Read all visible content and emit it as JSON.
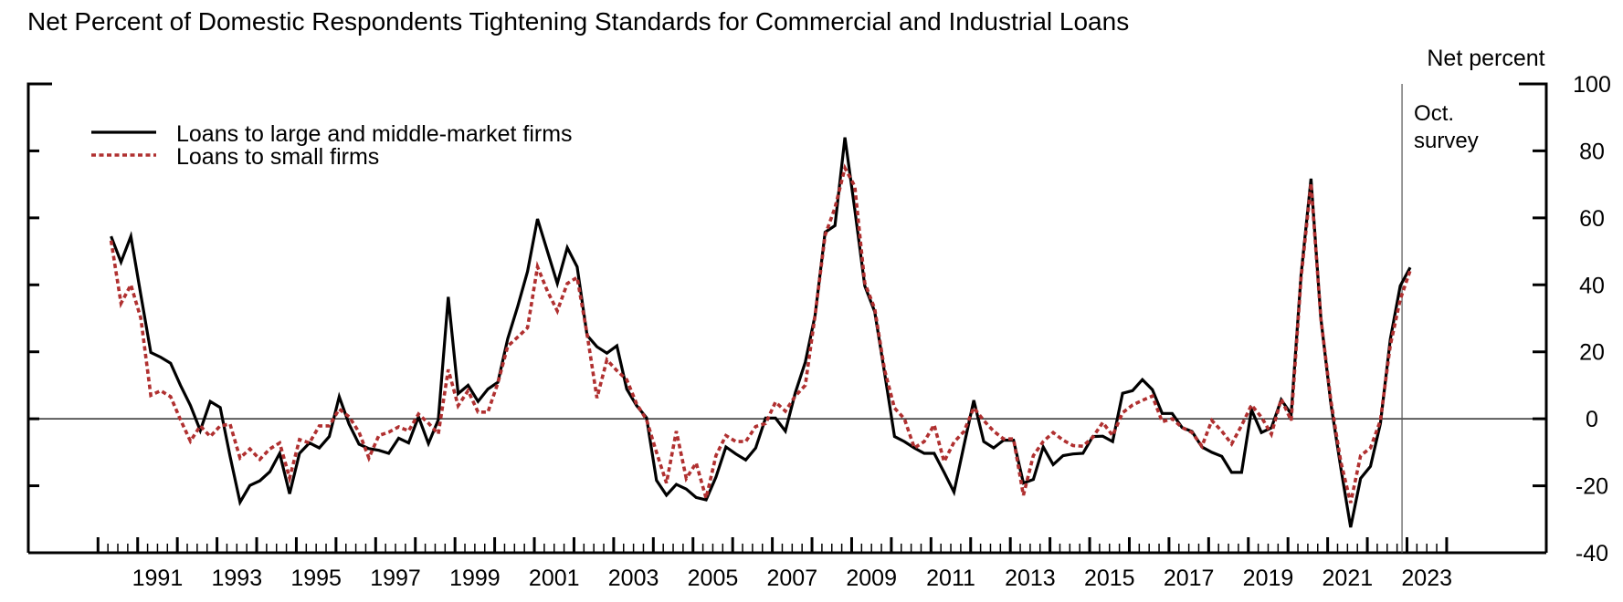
{
  "chart_data": {
    "type": "line",
    "title": "Net Percent of Domestic Respondents Tightening Standards for Commercial and Industrial Loans",
    "ylabel": "Net percent",
    "xlabel": "",
    "ylim": [
      -40,
      100
    ],
    "yticks": [
      100,
      80,
      60,
      40,
      20,
      0,
      -20,
      -40
    ],
    "xlim": [
      1990,
      2024
    ],
    "xtick_labels": [
      "1991",
      "1993",
      "1995",
      "1997",
      "1999",
      "2001",
      "2003",
      "2005",
      "2007",
      "2009",
      "2011",
      "2013",
      "2015",
      "2017",
      "2019",
      "2021",
      "2023"
    ],
    "grid": false,
    "zero_line": true,
    "legend_position": "top-left",
    "annotation": {
      "lines": [
        "Oct.",
        "survey"
      ],
      "x": 2022.875
    },
    "x": [
      "1990Q2",
      "1990Q3",
      "1990Q4",
      "1991Q1",
      "1991Q2",
      "1991Q3",
      "1991Q4",
      "1992Q1",
      "1992Q2",
      "1992Q3",
      "1992Q4",
      "1993Q1",
      "1993Q2",
      "1993Q3",
      "1993Q4",
      "1994Q1",
      "1994Q2",
      "1994Q3",
      "1994Q4",
      "1995Q1",
      "1995Q2",
      "1995Q3",
      "1995Q4",
      "1996Q1",
      "1996Q2",
      "1996Q3",
      "1996Q4",
      "1997Q1",
      "1997Q2",
      "1997Q3",
      "1997Q4",
      "1998Q1",
      "1998Q2",
      "1998Q3",
      "1998Q4",
      "1999Q1",
      "1999Q2",
      "1999Q3",
      "1999Q4",
      "2000Q1",
      "2000Q2",
      "2000Q3",
      "2000Q4",
      "2001Q1",
      "2001Q2",
      "2001Q3",
      "2001Q4",
      "2002Q1",
      "2002Q2",
      "2002Q3",
      "2002Q4",
      "2003Q1",
      "2003Q2",
      "2003Q3",
      "2003Q4",
      "2004Q1",
      "2004Q2",
      "2004Q3",
      "2004Q4",
      "2005Q1",
      "2005Q2",
      "2005Q3",
      "2005Q4",
      "2006Q1",
      "2006Q2",
      "2006Q3",
      "2006Q4",
      "2007Q1",
      "2007Q2",
      "2007Q3",
      "2007Q4",
      "2008Q1",
      "2008Q2",
      "2008Q3",
      "2008Q4",
      "2009Q1",
      "2009Q2",
      "2009Q3",
      "2009Q4",
      "2010Q1",
      "2010Q2",
      "2010Q3",
      "2010Q4",
      "2011Q1",
      "2011Q2",
      "2011Q3",
      "2011Q4",
      "2012Q1",
      "2012Q2",
      "2012Q3",
      "2012Q4",
      "2013Q1",
      "2013Q2",
      "2013Q3",
      "2013Q4",
      "2014Q1",
      "2014Q2",
      "2014Q3",
      "2014Q4",
      "2015Q1",
      "2015Q2",
      "2015Q3",
      "2015Q4",
      "2016Q1",
      "2016Q2",
      "2016Q3",
      "2016Q4",
      "2017Q1",
      "2017Q2",
      "2017Q3",
      "2017Q4",
      "2018Q1",
      "2018Q2",
      "2018Q3",
      "2018Q4",
      "2019Q1",
      "2019Q2",
      "2019Q3",
      "2019Q4",
      "2020Q1",
      "2020Q2",
      "2020Q3",
      "2020Q4",
      "2021Q1",
      "2021Q2",
      "2021Q3",
      "2021Q4",
      "2022Q1",
      "2022Q2",
      "2022Q3",
      "2022Q4",
      "2023Q1"
    ],
    "series": [
      {
        "name": "Loans to large and middle-market firms",
        "color": "#000000",
        "style": "solid",
        "values": [
          54.5,
          46.8,
          54.5,
          37,
          19.8,
          18.4,
          16.6,
          10,
          4,
          -3.5,
          5.2,
          3.4,
          -11.2,
          -24.9,
          -19.9,
          -18.5,
          -15.8,
          -10.3,
          -22.4,
          -10.3,
          -7.2,
          -8.7,
          -5.3,
          6.6,
          -1.6,
          -7.6,
          -8.9,
          -9.4,
          -10.3,
          -5.8,
          -7.2,
          0.6,
          -7.4,
          -0.3,
          36.4,
          7.5,
          10,
          5.2,
          8.9,
          10.9,
          23.9,
          33.5,
          44,
          59.7,
          50,
          40.4,
          51.1,
          45.4,
          24.9,
          21.5,
          19.6,
          21.8,
          8.9,
          3.9,
          0.3,
          -18.4,
          -22.8,
          -19.6,
          -21,
          -23.5,
          -24.2,
          -17.4,
          -8.4,
          -10.5,
          -12.3,
          -8.7,
          0.2,
          0.2,
          -3.7,
          7.8,
          16.9,
          31,
          55.7,
          57.7,
          84,
          62.5,
          39.7,
          32,
          13.7,
          -5.3,
          -6.8,
          -8.7,
          -10.3,
          -10.3,
          -16,
          -21.9,
          -8,
          5.5,
          -6.8,
          -8.7,
          -6.4,
          -6.4,
          -19.2,
          -18.1,
          -8.4,
          -13.7,
          -11,
          -10.5,
          -10.3,
          -5.3,
          -5.2,
          -6.8,
          7.6,
          8.4,
          11.7,
          8.7,
          1.6,
          1.6,
          -2.6,
          -3.8,
          -8.4,
          -10,
          -11.2,
          -16,
          -16,
          2.7,
          -4.1,
          -2.7,
          5.7,
          1.4,
          42.9,
          71.7,
          30,
          4.6,
          -14.6,
          -32.4,
          -17.8,
          -14.2,
          -1.4,
          23.7,
          39.7,
          45.2
        ]
      },
      {
        "name": "Loans to small firms",
        "color": "#b03030",
        "style": "dotted",
        "values": [
          53.2,
          34.5,
          40,
          30,
          7,
          8.4,
          6.6,
          -0.3,
          -6.7,
          -2.1,
          -5.3,
          -2.1,
          -1.6,
          -11.7,
          -9,
          -12.1,
          -9,
          -7.2,
          -17.7,
          -6.2,
          -7.2,
          -2.1,
          -2.1,
          2.9,
          0.6,
          -4,
          -11.7,
          -5,
          -4,
          -2.4,
          -3.6,
          1.4,
          -1.3,
          -4.5,
          14.7,
          3.9,
          8.4,
          2,
          2,
          10.7,
          21.7,
          24.4,
          27.2,
          45.4,
          38.1,
          32.2,
          40.4,
          42.2,
          25.3,
          6.2,
          17.6,
          14.4,
          11.7,
          4.4,
          -0.3,
          -10,
          -19.2,
          -3.7,
          -17.8,
          -13.2,
          -23.7,
          -11,
          -5,
          -6.8,
          -6.8,
          -2.3,
          -1.4,
          5,
          2.3,
          6.8,
          10,
          31,
          54.8,
          63,
          74.9,
          69.4,
          40.6,
          32.9,
          14.6,
          3.2,
          0,
          -8.7,
          -6.8,
          -1.8,
          -12.8,
          -7,
          -3.8,
          3.3,
          -0.5,
          -3.7,
          -6,
          -6,
          -22.8,
          -11,
          -6.8,
          -4.1,
          -6.4,
          -8,
          -8.2,
          -5.5,
          -1.1,
          -5,
          1.8,
          4.1,
          5.5,
          6.8,
          -0.9,
          0,
          -2.6,
          -4.1,
          -8.2,
          -0.5,
          -3.7,
          -7.5,
          -2,
          4.1,
          0.5,
          -4.6,
          5.9,
          -0.5,
          42,
          70.3,
          30,
          5.5,
          -12.8,
          -25.1,
          -11,
          -8.7,
          -0.5,
          21.9,
          35.6,
          44.3
        ]
      }
    ]
  }
}
